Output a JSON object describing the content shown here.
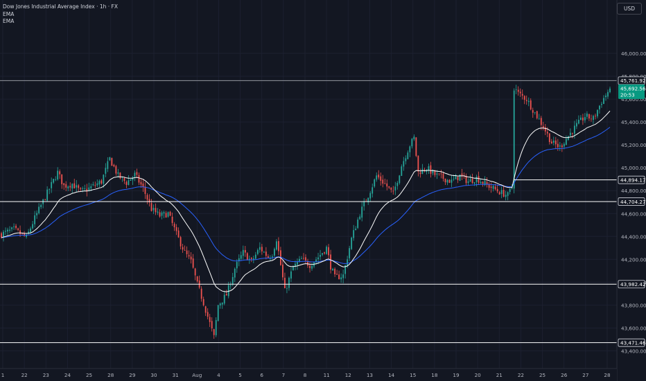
{
  "header": {
    "title": "Dow Jones Industrial Average Index · 1h · FX",
    "indicators": [
      "EMA",
      "EMA"
    ],
    "currency": "USD"
  },
  "colors": {
    "background": "#131722",
    "grid": "#1c2030",
    "up": "#26a69a",
    "down": "#ef5350",
    "ema_fast": "#ffffff",
    "ema_slow": "#2962ff",
    "current_price": "#089981",
    "axis_text": "#b2b5be"
  },
  "chart_data": {
    "type": "candlestick",
    "title": "Dow Jones Industrial Average Index · 1h · FX",
    "ylim": [
      43300,
      46200
    ],
    "y_ticks": [
      {
        "value": 46000,
        "label": "46,000.00"
      },
      {
        "value": 45800,
        "label": "45,800.00"
      },
      {
        "value": 45600,
        "label": "45,600.00"
      },
      {
        "value": 45400,
        "label": "45,400.00"
      },
      {
        "value": 45200,
        "label": "45,200.00"
      },
      {
        "value": 45000,
        "label": "45,000.00"
      },
      {
        "value": 44800,
        "label": "44,800.00"
      },
      {
        "value": 44600,
        "label": "44,600.00"
      },
      {
        "value": 44400,
        "label": "44,400.00"
      },
      {
        "value": 44200,
        "label": "44,200.00"
      },
      {
        "value": 44000,
        "label": "44,000.00"
      },
      {
        "value": 43800,
        "label": "43,800.00"
      },
      {
        "value": 43600,
        "label": "43,600.00"
      },
      {
        "value": 43400,
        "label": "43,400.00"
      }
    ],
    "x_ticks": [
      "1",
      "22",
      "23",
      "24",
      "25",
      "28",
      "29",
      "30",
      "31",
      "Aug",
      "4",
      "5",
      "6",
      "7",
      "8",
      "11",
      "12",
      "13",
      "14",
      "15",
      "18",
      "19",
      "20",
      "21",
      "22",
      "25",
      "26",
      "27",
      "28"
    ],
    "horizontal_levels": [
      {
        "value": 45761.92,
        "label": "45,761.92"
      },
      {
        "value": 44894.17,
        "label": "44,894.17"
      },
      {
        "value": 44704.27,
        "label": "44,704.27"
      },
      {
        "value": 43982.42,
        "label": "43,982.42"
      },
      {
        "value": 43471.46,
        "label": "43,471.46"
      }
    ],
    "current_price": {
      "value": 45692.56,
      "label": "45,692.56",
      "countdown": "20:53"
    },
    "waypoints": [
      [
        0,
        44420
      ],
      [
        6,
        44460
      ],
      [
        12,
        44390
      ],
      [
        16,
        44560
      ],
      [
        22,
        44780
      ],
      [
        27,
        44960
      ],
      [
        30,
        44840
      ],
      [
        34,
        44860
      ],
      [
        38,
        44790
      ],
      [
        42,
        44820
      ],
      [
        48,
        44880
      ],
      [
        52,
        45080
      ],
      [
        56,
        44930
      ],
      [
        60,
        44870
      ],
      [
        64,
        44940
      ],
      [
        68,
        44820
      ],
      [
        72,
        44640
      ],
      [
        76,
        44580
      ],
      [
        80,
        44600
      ],
      [
        84,
        44420
      ],
      [
        88,
        44260
      ],
      [
        91,
        44180
      ],
      [
        94,
        43980
      ],
      [
        97,
        43820
      ],
      [
        100,
        43640
      ],
      [
        102,
        43520
      ],
      [
        104,
        43800
      ],
      [
        108,
        43890
      ],
      [
        110,
        44000
      ],
      [
        112,
        44120
      ],
      [
        116,
        44260
      ],
      [
        120,
        44180
      ],
      [
        124,
        44300
      ],
      [
        128,
        44220
      ],
      [
        130,
        44250
      ],
      [
        132,
        44380
      ],
      [
        134,
        44150
      ],
      [
        136,
        43920
      ],
      [
        140,
        44130
      ],
      [
        144,
        44200
      ],
      [
        148,
        44150
      ],
      [
        152,
        44220
      ],
      [
        156,
        44300
      ],
      [
        158,
        44140
      ],
      [
        160,
        44040
      ],
      [
        164,
        44060
      ],
      [
        168,
        44380
      ],
      [
        172,
        44600
      ],
      [
        176,
        44760
      ],
      [
        180,
        44930
      ],
      [
        184,
        44860
      ],
      [
        188,
        44770
      ],
      [
        192,
        45020
      ],
      [
        196,
        45200
      ],
      [
        198,
        45260
      ],
      [
        200,
        44960
      ],
      [
        204,
        45000
      ],
      [
        208,
        44940
      ],
      [
        212,
        44910
      ],
      [
        216,
        44880
      ],
      [
        220,
        44930
      ],
      [
        224,
        44880
      ],
      [
        228,
        44910
      ],
      [
        232,
        44860
      ],
      [
        236,
        44820
      ],
      [
        240,
        44780
      ],
      [
        243,
        44760
      ],
      [
        245,
        44830
      ],
      [
        246,
        45700
      ],
      [
        248,
        45650
      ],
      [
        252,
        45600
      ],
      [
        256,
        45480
      ],
      [
        260,
        45360
      ],
      [
        264,
        45220
      ],
      [
        268,
        45180
      ],
      [
        272,
        45280
      ],
      [
        276,
        45370
      ],
      [
        280,
        45450
      ],
      [
        284,
        45430
      ],
      [
        288,
        45580
      ],
      [
        292,
        45690
      ]
    ],
    "ema_fast_period": 20,
    "ema_slow_period": 50
  }
}
